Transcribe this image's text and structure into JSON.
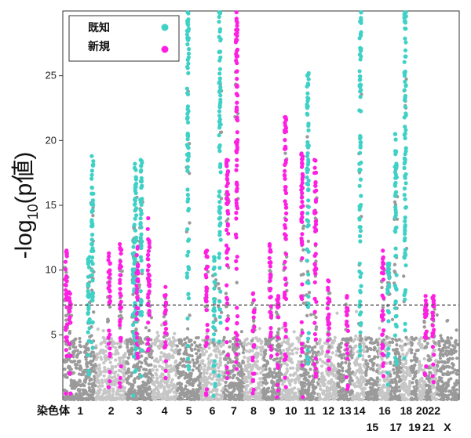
{
  "chart_data": {
    "type": "scatter",
    "title": "",
    "xlabel": "",
    "ylabel": "-log₁₀(p値)",
    "ylabel_parts": {
      "pre": "-log",
      "sub": "10",
      "post": "(p値)"
    },
    "ylim": [
      0,
      30
    ],
    "yticks": [
      "5",
      "10",
      "15",
      "20",
      "25"
    ],
    "ytick_values": [
      5,
      10,
      15,
      20,
      25
    ],
    "significance_threshold": 7.3,
    "x_prefix": "染色体",
    "x_row1": [
      "1",
      "2",
      "3",
      "4",
      "5",
      "6",
      "7",
      "8",
      "9",
      "10",
      "11",
      "12",
      "13",
      "14",
      "16",
      "18",
      "20",
      "22"
    ],
    "x_row2": [
      "15",
      "17",
      "19",
      "21",
      "X"
    ],
    "legend": {
      "position": "top-left",
      "entries": [
        {
          "name": "既知",
          "color": "#3fd1c6"
        },
        {
          "name": "新規",
          "color": "#ff1fe3"
        }
      ]
    },
    "colors": {
      "known": "#3fd1c6",
      "novel": "#ff1fe3",
      "background_a": "#9a9a9a",
      "background_b": "#c6c6c6",
      "threshold": "#555555"
    },
    "chromosomes": [
      {
        "chr": "1",
        "start": 0,
        "end": 8.5
      },
      {
        "chr": "2",
        "start": 8.5,
        "end": 16.5
      },
      {
        "chr": "3",
        "start": 16.5,
        "end": 23.5
      },
      {
        "chr": "4",
        "start": 23.5,
        "end": 30
      },
      {
        "chr": "5",
        "start": 30,
        "end": 36.5
      },
      {
        "chr": "6",
        "start": 36.5,
        "end": 42.5
      },
      {
        "chr": "7",
        "start": 42.5,
        "end": 48
      },
      {
        "chr": "8",
        "start": 48,
        "end": 53
      },
      {
        "chr": "9",
        "start": 53,
        "end": 58
      },
      {
        "chr": "10",
        "start": 58,
        "end": 63
      },
      {
        "chr": "11",
        "start": 63,
        "end": 68
      },
      {
        "chr": "12",
        "start": 68,
        "end": 73
      },
      {
        "chr": "13",
        "start": 73,
        "end": 77
      },
      {
        "chr": "14",
        "start": 77,
        "end": 80.5
      },
      {
        "chr": "15",
        "start": 80.5,
        "end": 84
      },
      {
        "chr": "16",
        "start": 84,
        "end": 87
      },
      {
        "chr": "17",
        "start": 87,
        "end": 90
      },
      {
        "chr": "18",
        "start": 90,
        "end": 92.5
      },
      {
        "chr": "19",
        "start": 92.5,
        "end": 94.5
      },
      {
        "chr": "20",
        "start": 94.5,
        "end": 96.5
      },
      {
        "chr": "21",
        "start": 96.5,
        "end": 98
      },
      {
        "chr": "22",
        "start": 98,
        "end": 99.5
      },
      {
        "chr": "X",
        "start": 99.5,
        "end": 105
      }
    ],
    "peaks": [
      {
        "x": 0.5,
        "max": 11.5,
        "type": "novel"
      },
      {
        "x": 1.5,
        "max": 8.3,
        "type": "novel"
      },
      {
        "x": 6.5,
        "max": 11.0,
        "type": "known"
      },
      {
        "x": 7.5,
        "max": 18.8,
        "type": "known"
      },
      {
        "x": 12.0,
        "max": 11.3,
        "type": "novel"
      },
      {
        "x": 15.0,
        "max": 12.0,
        "type": "novel"
      },
      {
        "x": 18.5,
        "max": 13.5,
        "type": "known"
      },
      {
        "x": 19.0,
        "max": 18.2,
        "type": "known"
      },
      {
        "x": 19.5,
        "max": 11.8,
        "type": "novel"
      },
      {
        "x": 20.5,
        "max": 18.5,
        "type": "known"
      },
      {
        "x": 22.5,
        "max": 14.0,
        "type": "novel"
      },
      {
        "x": 27.0,
        "max": 8.7,
        "type": "novel"
      },
      {
        "x": 33.0,
        "max": 30.0,
        "type": "known"
      },
      {
        "x": 38.0,
        "max": 11.5,
        "type": "novel"
      },
      {
        "x": 40.0,
        "max": 11.0,
        "type": "known"
      },
      {
        "x": 41.5,
        "max": 30.0,
        "type": "known"
      },
      {
        "x": 43.5,
        "max": 18.5,
        "type": "novel"
      },
      {
        "x": 46.0,
        "max": 30.0,
        "type": "novel"
      },
      {
        "x": 50.5,
        "max": 8.2,
        "type": "novel"
      },
      {
        "x": 55.0,
        "max": 12.0,
        "type": "novel"
      },
      {
        "x": 57.0,
        "max": 8.0,
        "type": "novel"
      },
      {
        "x": 59.0,
        "max": 21.8,
        "type": "novel"
      },
      {
        "x": 63.5,
        "max": 19.0,
        "type": "novel"
      },
      {
        "x": 65.0,
        "max": 25.2,
        "type": "known"
      },
      {
        "x": 67.0,
        "max": 18.5,
        "type": "novel"
      },
      {
        "x": 70.5,
        "max": 9.2,
        "type": "novel"
      },
      {
        "x": 75.5,
        "max": 8.0,
        "type": "novel"
      },
      {
        "x": 79.0,
        "max": 30.0,
        "type": "known"
      },
      {
        "x": 85.0,
        "max": 11.5,
        "type": "novel"
      },
      {
        "x": 86.5,
        "max": 10.5,
        "type": "known"
      },
      {
        "x": 88.5,
        "max": 20.5,
        "type": "known"
      },
      {
        "x": 91.0,
        "max": 30.0,
        "type": "known"
      },
      {
        "x": 96.5,
        "max": 8.0,
        "type": "novel"
      },
      {
        "x": 98.5,
        "max": 8.0,
        "type": "novel"
      }
    ]
  }
}
